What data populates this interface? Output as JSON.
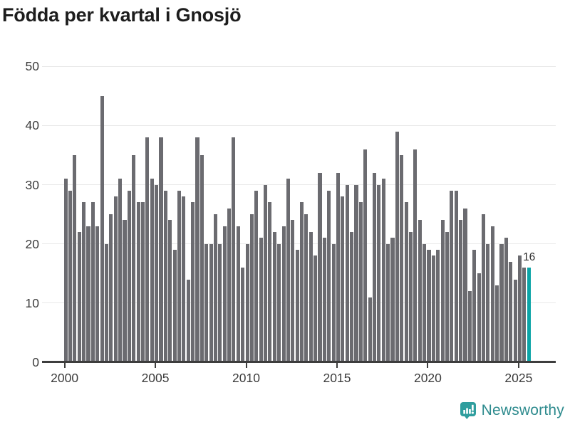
{
  "title": "Födda per kvartal i Gnosjö",
  "chart_data": {
    "type": "bar",
    "title": "Födda per kvartal i Gnosjö",
    "x_unit": "quarter",
    "x_start": "2000-Q1",
    "x_end": "2025-Q3",
    "years": [
      {
        "year": 2000,
        "values": [
          31,
          29,
          35,
          22
        ]
      },
      {
        "year": 2001,
        "values": [
          27,
          23,
          27,
          23
        ]
      },
      {
        "year": 2002,
        "values": [
          45,
          20,
          25,
          28
        ]
      },
      {
        "year": 2003,
        "values": [
          31,
          24,
          29,
          35
        ]
      },
      {
        "year": 2004,
        "values": [
          27,
          27,
          38,
          31
        ]
      },
      {
        "year": 2005,
        "values": [
          30,
          38,
          29,
          24
        ]
      },
      {
        "year": 2006,
        "values": [
          19,
          29,
          28,
          14
        ]
      },
      {
        "year": 2007,
        "values": [
          27,
          38,
          35,
          20
        ]
      },
      {
        "year": 2008,
        "values": [
          20,
          25,
          20,
          23
        ]
      },
      {
        "year": 2009,
        "values": [
          26,
          38,
          23,
          16
        ]
      },
      {
        "year": 2010,
        "values": [
          20,
          25,
          29,
          21
        ]
      },
      {
        "year": 2011,
        "values": [
          30,
          27,
          22,
          20
        ]
      },
      {
        "year": 2012,
        "values": [
          23,
          31,
          24,
          19
        ]
      },
      {
        "year": 2013,
        "values": [
          27,
          25,
          22,
          18
        ]
      },
      {
        "year": 2014,
        "values": [
          32,
          21,
          29,
          20
        ]
      },
      {
        "year": 2015,
        "values": [
          32,
          28,
          30,
          22
        ]
      },
      {
        "year": 2016,
        "values": [
          30,
          27,
          36,
          11
        ]
      },
      {
        "year": 2017,
        "values": [
          32,
          30,
          31,
          20
        ]
      },
      {
        "year": 2018,
        "values": [
          21,
          39,
          35,
          27
        ]
      },
      {
        "year": 2019,
        "values": [
          22,
          36,
          24,
          20
        ]
      },
      {
        "year": 2020,
        "values": [
          19,
          18,
          19,
          24
        ]
      },
      {
        "year": 2021,
        "values": [
          22,
          29,
          29,
          24
        ]
      },
      {
        "year": 2022,
        "values": [
          26,
          12,
          19,
          15
        ]
      },
      {
        "year": 2023,
        "values": [
          25,
          20,
          23,
          13
        ]
      },
      {
        "year": 2024,
        "values": [
          20,
          21,
          17,
          14
        ]
      },
      {
        "year": 2025,
        "values": [
          18,
          16,
          16
        ]
      }
    ],
    "highlight": {
      "quarter": "2025-Q3",
      "value": 16,
      "color": "#0ca4a7"
    },
    "annotation_label": "16",
    "bar_color": "#6b6b70",
    "yticks": [
      "0",
      "10",
      "20",
      "30",
      "40",
      "50"
    ],
    "xticks": [
      "2000",
      "2005",
      "2010",
      "2015",
      "2020",
      "2025"
    ],
    "ylim": [
      0,
      50
    ],
    "grid": true,
    "legend": "none"
  },
  "footer": {
    "logo_text": "Newsworthy",
    "logo_icon": "bar-chart-speech-bubble-icon",
    "logo_color": "#2f9e9e"
  }
}
